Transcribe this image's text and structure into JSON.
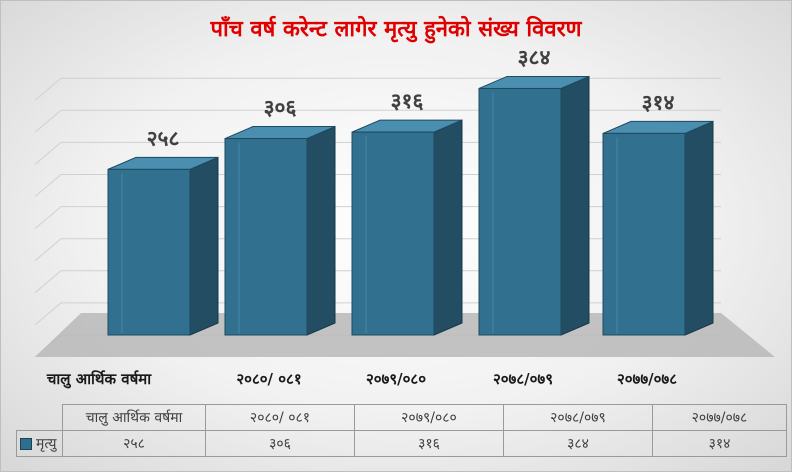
{
  "chart_data": {
    "type": "bar",
    "title": "पाँच वर्ष करेन्ट लागेर मृत्यु हुनेको संख्य विवरण",
    "categories": [
      "चालु आर्थिक वर्षमा",
      "२०८०/ ०८१",
      "२०७९/०८०",
      "२०७८/०७९",
      "२०७७/०७८"
    ],
    "series": [
      {
        "name": "मृत्यु",
        "values": [
          258,
          306,
          316,
          384,
          314
        ],
        "labels": [
          "२५८",
          "३०६",
          "३१६",
          "३८४",
          "३१४"
        ]
      }
    ],
    "ylim": [
      0,
      400
    ],
    "grid": true,
    "legend": "table",
    "colors": {
      "front": "#31708f",
      "side": "#224d63",
      "top": "#4a8fb0",
      "title": "#e00000"
    }
  }
}
